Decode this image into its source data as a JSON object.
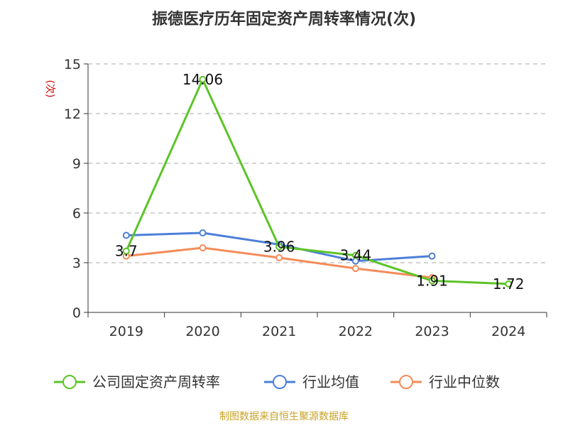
{
  "chart_data": {
    "type": "line",
    "title": "振德医疗历年固定资产周转率情况(次)",
    "ylabel": "(次)",
    "xlabel": "",
    "categories": [
      "2019",
      "2020",
      "2021",
      "2022",
      "2023",
      "2024"
    ],
    "ylim": [
      0,
      15
    ],
    "yticks": [
      "0",
      "3",
      "6",
      "9",
      "12",
      "15"
    ],
    "grid": true,
    "legend_position": "bottom",
    "series": [
      {
        "name": "公司固定资产周转率",
        "color": "#5cc427",
        "values": [
          3.7,
          14.06,
          3.96,
          3.44,
          1.91,
          1.72
        ],
        "labels": [
          "3.7",
          "14.06",
          "3.96",
          "3.44",
          "1.91",
          "1.72"
        ]
      },
      {
        "name": "行业均值",
        "color": "#4d7fd8",
        "values": [
          4.65,
          4.8,
          4.1,
          3.1,
          3.4,
          null
        ]
      },
      {
        "name": "行业中位数",
        "color": "#f48c5a",
        "values": [
          3.4,
          3.9,
          3.3,
          2.65,
          2.1,
          null
        ]
      }
    ],
    "source": "制图数据来自恒生聚源数据库"
  }
}
